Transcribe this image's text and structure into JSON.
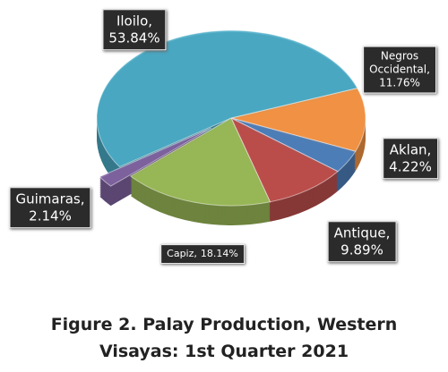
{
  "chart_data": {
    "type": "pie",
    "title": "Figure 2. Palay Production, Western Visayas: 1st Quarter 2021",
    "categories": [
      "Iloilo,",
      "Negros Occidental,",
      "Aklan,",
      "Antique,",
      "Capiz,",
      "Guimaras,"
    ],
    "values": [
      53.84,
      11.76,
      4.22,
      9.89,
      18.14,
      2.14
    ],
    "value_labels": [
      "53.84%",
      "11.76%",
      "4.22%",
      "9.89%",
      "18.14%",
      "2.14%"
    ],
    "colors": [
      "#4bacc6",
      "#f79646",
      "#4f81bd",
      "#c0504d",
      "#9bbb59",
      "#8064a2"
    ]
  }
}
